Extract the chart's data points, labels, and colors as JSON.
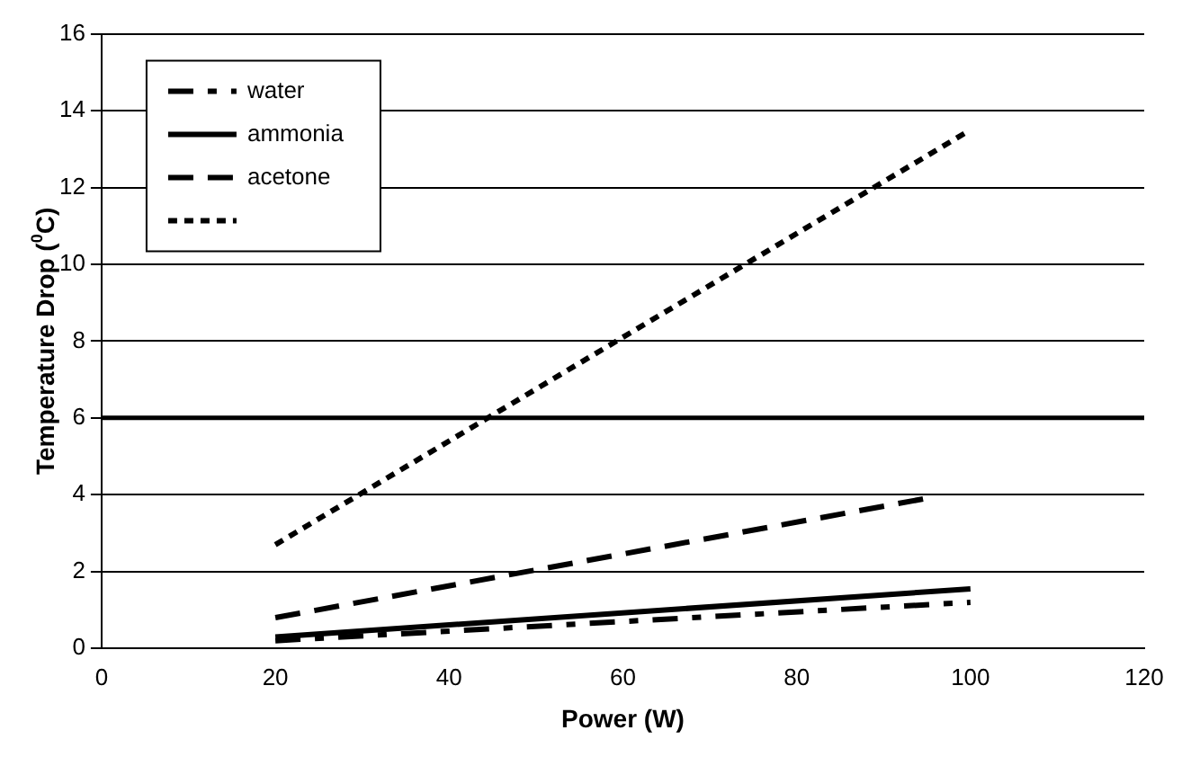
{
  "chart_data": {
    "type": "line",
    "xlabel": "Power (W)",
    "ylabel": "Temperature Drop ($^{0}$C)",
    "xlim": [
      0,
      120
    ],
    "xticks": [
      0,
      20,
      40,
      60,
      80,
      100,
      120
    ],
    "ylim": [
      0,
      16
    ],
    "yticks": [
      0,
      2,
      4,
      6,
      8,
      10,
      12,
      14,
      16
    ],
    "grid": "y",
    "legend": "top left",
    "marker": "none",
    "ref_lines": [
      {
        "axis": "y",
        "value": 6,
        "color": "#000000"
      }
    ],
    "series": [
      {
        "name": "water",
        "color": "#000000",
        "line_style": "dashdot",
        "x": [
          20,
          100
        ],
        "values": [
          0.2,
          1.2
        ]
      },
      {
        "name": "ammonia",
        "color": "#000000",
        "line_style": "solid",
        "x": [
          20,
          100
        ],
        "values": [
          0.3,
          1.55
        ]
      },
      {
        "name": "acetone",
        "color": "#000000",
        "line_style": "dashed",
        "x": [
          20,
          96
        ],
        "values": [
          0.8,
          3.95
        ]
      },
      {
        "color": "#000000",
        "line_style": "dotted",
        "x": [
          20,
          100
        ],
        "values": [
          2.7,
          13.5
        ]
      }
    ]
  }
}
